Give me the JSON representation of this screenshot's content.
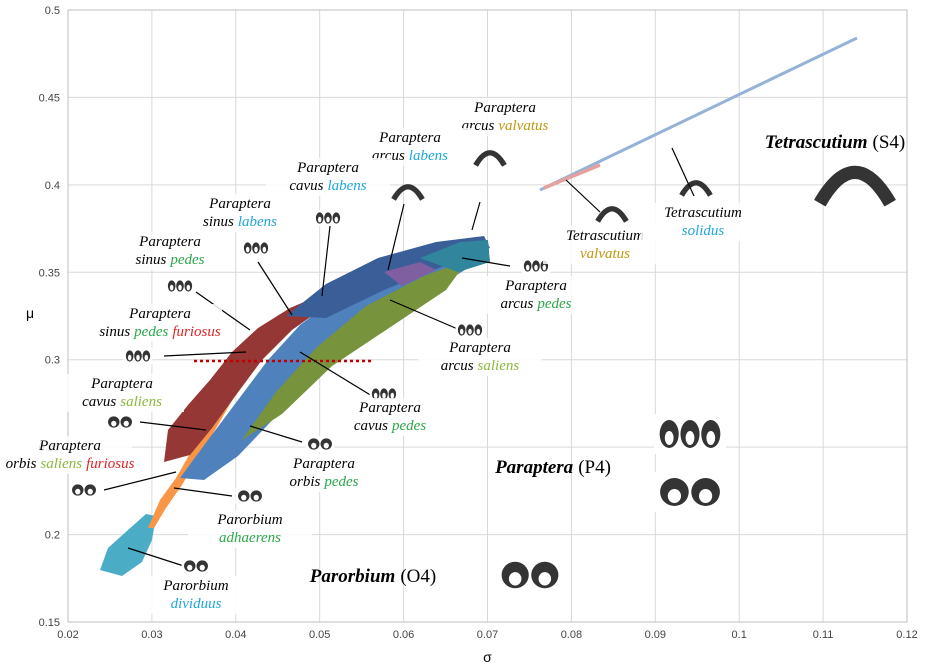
{
  "chart_data": {
    "type": "region-map",
    "xlabel": "σ",
    "ylabel": "μ",
    "xlim": [
      0.02,
      0.12
    ],
    "xticks": [
      0.02,
      0.03,
      0.04,
      0.05,
      0.06,
      0.07,
      0.08,
      0.09,
      0.1,
      0.11,
      0.12
    ],
    "ylim": [
      0.15,
      0.5
    ],
    "yticks": [
      0.15,
      0.2,
      0.25,
      0.3,
      0.35,
      0.4,
      0.45,
      0.5
    ],
    "grid": true,
    "groups": [
      {
        "genus": "Tetrascutium",
        "code": "(S4)"
      },
      {
        "genus": "Paraptera",
        "code": "(P4)"
      },
      {
        "genus": "Parorbium",
        "code": "(O4)"
      }
    ],
    "species": [
      {
        "genus": "Paraptera",
        "epithet": [
          {
            "text": "arcus"
          },
          {
            "text": "valvatus",
            "color": "#c0960c"
          }
        ]
      },
      {
        "genus": "Paraptera",
        "epithet": [
          {
            "text": "arcus"
          },
          {
            "text": "labens",
            "color": "#1ea7dc"
          }
        ]
      },
      {
        "genus": "Paraptera",
        "epithet": [
          {
            "text": "cavus"
          },
          {
            "text": "labens",
            "color": "#1ea7dc"
          }
        ]
      },
      {
        "genus": "Paraptera",
        "epithet": [
          {
            "text": "sinus"
          },
          {
            "text": "labens",
            "color": "#1ea7dc"
          }
        ]
      },
      {
        "genus": "Paraptera",
        "epithet": [
          {
            "text": "sinus"
          },
          {
            "text": "pedes",
            "color": "#2aa84a"
          }
        ]
      },
      {
        "genus": "Paraptera",
        "epithet": [
          {
            "text": "sinus"
          },
          {
            "text": "pedes",
            "color": "#2aa84a"
          },
          {
            "text": "furiosus",
            "color": "#e02424"
          }
        ]
      },
      {
        "genus": "Paraptera",
        "epithet": [
          {
            "text": "cavus"
          },
          {
            "text": "saliens",
            "color": "#8cb83c"
          }
        ]
      },
      {
        "genus": "Paraptera",
        "epithet": [
          {
            "text": "orbis"
          },
          {
            "text": "saliens",
            "color": "#8cb83c"
          },
          {
            "text": "furiosus",
            "color": "#e02424"
          }
        ]
      },
      {
        "genus": "Parorbium",
        "epithet": [
          {
            "text": "adhaerens",
            "color": "#2aa84a"
          }
        ]
      },
      {
        "genus": "Parorbium",
        "epithet": [
          {
            "text": "dividuus",
            "color": "#1ea7dc"
          }
        ]
      },
      {
        "genus": "Paraptera",
        "epithet": [
          {
            "text": "orbis"
          },
          {
            "text": "pedes",
            "color": "#2aa84a"
          }
        ]
      },
      {
        "genus": "Paraptera",
        "epithet": [
          {
            "text": "cavus"
          },
          {
            "text": "pedes",
            "color": "#2aa84a"
          }
        ]
      },
      {
        "genus": "Paraptera",
        "epithet": [
          {
            "text": "arcus"
          },
          {
            "text": "saliens",
            "color": "#8cb83c"
          }
        ]
      },
      {
        "genus": "Paraptera",
        "epithet": [
          {
            "text": "arcus"
          },
          {
            "text": "pedes",
            "color": "#2aa84a"
          }
        ]
      },
      {
        "genus": "Tetrascutium",
        "epithet": [
          {
            "text": "valvatus",
            "color": "#c0960c"
          }
        ]
      },
      {
        "genus": "Tetrascutium",
        "epithet": [
          {
            "text": "solidus",
            "color": "#1ea7dc"
          }
        ]
      }
    ]
  }
}
